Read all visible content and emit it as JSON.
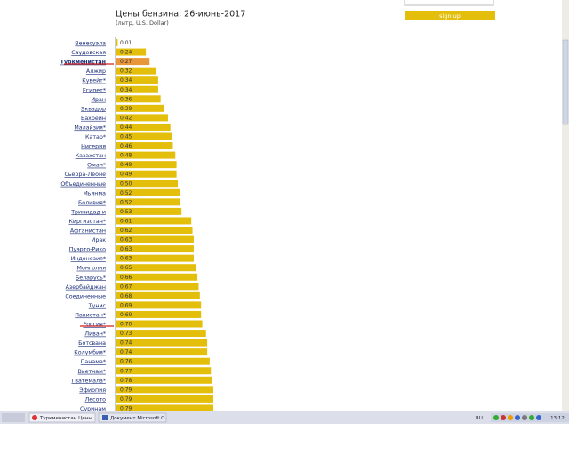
{
  "chart_data": {
    "type": "bar",
    "orientation": "horizontal",
    "title": "Цены бензина, 26-июнь-2017",
    "subtitle": "(литр, U.S. Dollar)",
    "categories": [
      "Венесуэла",
      "Саудовская",
      "Туркменистан",
      "Алжир",
      "Кувейт*",
      "Египет*",
      "Иран",
      "Эквадор",
      "Бахрейн",
      "Малайзия*",
      "Катар*",
      "Нигерия",
      "Казахстан",
      "Оман*",
      "Сьерра-Леоне",
      "Объединенные",
      "Мьянма",
      "Боливия*",
      "Тринидад и",
      "Киргизстан*",
      "Афганистан",
      "Ирак",
      "Пуэрто-Рико",
      "Индонезия*",
      "Монголия",
      "Беларусь*",
      "Азербайджан",
      "Соединенные",
      "Тунис",
      "Пакистан*",
      "Россия*",
      "Ливан*",
      "Ботсвана",
      "Колумбия*",
      "Панама*",
      "Вьетнам*",
      "Гватемала*",
      "Эфиопия",
      "Лесото",
      "Суринам"
    ],
    "values": [
      0.01,
      0.24,
      0.27,
      0.32,
      0.34,
      0.34,
      0.36,
      0.39,
      0.42,
      0.44,
      0.45,
      0.46,
      0.48,
      0.49,
      0.49,
      0.5,
      0.52,
      0.52,
      0.53,
      0.61,
      0.62,
      0.63,
      0.63,
      0.63,
      0.65,
      0.66,
      0.67,
      0.68,
      0.69,
      0.69,
      0.7,
      0.73,
      0.74,
      0.74,
      0.76,
      0.77,
      0.78,
      0.79,
      0.79,
      0.79
    ],
    "value_labels": [
      "0.01",
      "0.24",
      "0.27",
      "0.32",
      "0.34",
      "0.34",
      "0.36",
      "0.39",
      "0.42",
      "0.44",
      "0.45",
      "0.46",
      "0.48",
      "0.49",
      "0.49",
      "0.50",
      "0.52",
      "0.52",
      "0.53",
      "0.61",
      "0.62",
      "0.63",
      "0.63",
      "0.63",
      "0.65",
      "0.66",
      "0.67",
      "0.68",
      "0.69",
      "0.69",
      "0.70",
      "0.73",
      "0.74",
      "0.74",
      "0.76",
      "0.77",
      "0.78",
      "0.79",
      "0.79",
      "0.79"
    ],
    "color": "#e3bf0c",
    "colors": [
      "#e3bf0c",
      "#e3bf0c",
      "#e8963a",
      "#e3bf0c",
      "#e3bf0c",
      "#e3bf0c",
      "#e3bf0c",
      "#e3bf0c",
      "#e3bf0c",
      "#e3bf0c",
      "#e3bf0c",
      "#e3bf0c",
      "#e3bf0c",
      "#e3bf0c",
      "#e3bf0c",
      "#e3bf0c",
      "#e3bf0c",
      "#e3bf0c",
      "#e3bf0c",
      "#e3bf0c",
      "#e3bf0c",
      "#e3bf0c",
      "#e3bf0c",
      "#e3bf0c",
      "#e3bf0c",
      "#e3bf0c",
      "#e3bf0c",
      "#e3bf0c",
      "#e3bf0c",
      "#e3bf0c",
      "#e3bf0c",
      "#e3bf0c",
      "#e3bf0c",
      "#e3bf0c",
      "#e3bf0c",
      "#e3bf0c",
      "#e3bf0c",
      "#e3bf0c",
      "#e3bf0c",
      "#e3bf0c"
    ]
  },
  "signup": {
    "button": "sign up"
  },
  "taskbar": {
    "items": [
      "Туркменистан Цены ...",
      "Документ Microsoft O..."
    ],
    "language": "RU",
    "clock": "13:12"
  }
}
